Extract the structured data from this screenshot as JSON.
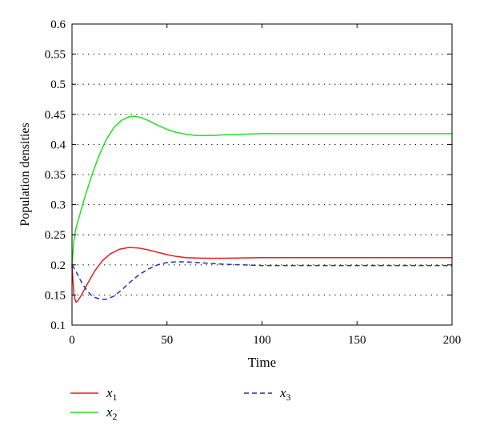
{
  "chart_data": {
    "type": "line",
    "title": "",
    "xlabel": "Time",
    "ylabel": "Population densities",
    "xlim": [
      0,
      200
    ],
    "ylim": [
      0.1,
      0.6
    ],
    "xticks": [
      0,
      50,
      100,
      150,
      200
    ],
    "xtick_labels": [
      "0",
      "50",
      "100",
      "150",
      "200"
    ],
    "yticks": [
      0.1,
      0.15,
      0.2,
      0.25,
      0.3,
      0.35,
      0.4,
      0.45,
      0.5,
      0.55,
      0.6
    ],
    "ytick_labels": [
      "0.1",
      "0.15",
      "0.2",
      "0.25",
      "0.3",
      "0.35",
      "0.4",
      "0.45",
      "0.5",
      "0.55",
      "0.6"
    ],
    "grid": "horizontal-dotted",
    "legend_position": "bottom",
    "series": [
      {
        "name": "x",
        "subscript": "1",
        "color": "#e02020",
        "dash": "solid",
        "x": [
          0,
          1,
          2,
          3,
          5,
          8,
          12,
          16,
          20,
          25,
          30,
          35,
          40,
          45,
          50,
          55,
          60,
          70,
          80,
          100,
          120,
          150,
          200
        ],
        "y": [
          0.2,
          0.15,
          0.138,
          0.14,
          0.15,
          0.168,
          0.19,
          0.207,
          0.218,
          0.226,
          0.229,
          0.228,
          0.225,
          0.221,
          0.217,
          0.214,
          0.212,
          0.211,
          0.211,
          0.212,
          0.212,
          0.212,
          0.212
        ]
      },
      {
        "name": "x",
        "subscript": "2",
        "color": "#20e020",
        "dash": "solid",
        "x": [
          0,
          1,
          2,
          4,
          6,
          8,
          10,
          14,
          18,
          22,
          26,
          30,
          33,
          36,
          40,
          45,
          50,
          55,
          60,
          65,
          70,
          75,
          80,
          90,
          100,
          110,
          130,
          150,
          200
        ],
        "y": [
          0.2,
          0.24,
          0.26,
          0.282,
          0.305,
          0.325,
          0.345,
          0.38,
          0.408,
          0.428,
          0.44,
          0.446,
          0.447,
          0.445,
          0.44,
          0.432,
          0.425,
          0.42,
          0.417,
          0.415,
          0.415,
          0.415,
          0.416,
          0.417,
          0.418,
          0.418,
          0.418,
          0.418,
          0.418
        ]
      },
      {
        "name": "x",
        "subscript": "3",
        "color": "#2030c0",
        "dash": "dashed",
        "x": [
          0,
          2,
          4,
          6,
          8,
          10,
          12,
          15,
          18,
          22,
          26,
          30,
          35,
          40,
          45,
          50,
          55,
          60,
          65,
          70,
          80,
          90,
          100,
          120,
          150,
          200
        ],
        "y": [
          0.2,
          0.19,
          0.177,
          0.166,
          0.157,
          0.15,
          0.146,
          0.143,
          0.143,
          0.148,
          0.158,
          0.17,
          0.183,
          0.193,
          0.2,
          0.204,
          0.205,
          0.205,
          0.204,
          0.203,
          0.201,
          0.2,
          0.199,
          0.199,
          0.199,
          0.199
        ]
      }
    ]
  }
}
